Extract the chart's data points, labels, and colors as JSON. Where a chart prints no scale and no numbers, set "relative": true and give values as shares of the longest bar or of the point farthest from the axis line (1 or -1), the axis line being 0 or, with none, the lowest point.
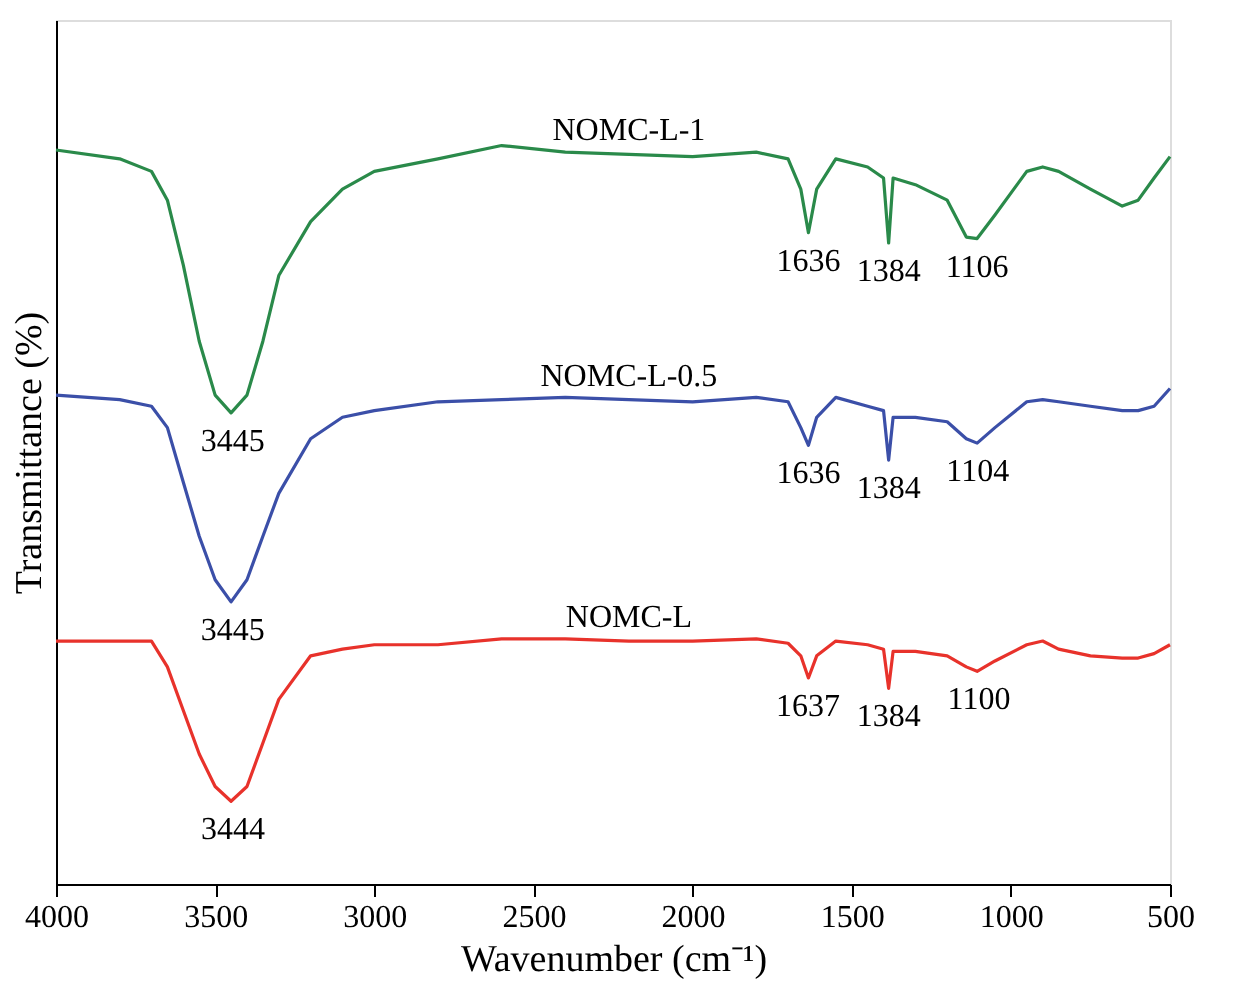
{
  "chart_data": {
    "type": "line",
    "relative": true,
    "xlabel": "Wavenumber (cm⁻¹)",
    "ylabel": "Transmittance (%)",
    "xlim": [
      4000,
      500
    ],
    "xticks": [
      4000,
      3500,
      3000,
      2500,
      2000,
      1500,
      1000,
      500
    ],
    "tick_labels": "x",
    "x": [
      4000,
      3800,
      3700,
      3650,
      3600,
      3550,
      3500,
      3450,
      3400,
      3350,
      3300,
      3200,
      3100,
      3000,
      2800,
      2600,
      2400,
      2200,
      2000,
      1800,
      1700,
      1660,
      1636,
      1610,
      1550,
      1450,
      1400,
      1384,
      1370,
      1300,
      1200,
      1140,
      1106,
      1050,
      950,
      900,
      850,
      750,
      650,
      600,
      550,
      500
    ],
    "series": [
      {
        "name": "NOMC-L-1",
        "color": "#2a8a4a",
        "values": [
          0.994,
          0.982,
          0.965,
          0.926,
          0.838,
          0.735,
          0.662,
          0.638,
          0.662,
          0.735,
          0.824,
          0.897,
          0.941,
          0.965,
          0.982,
          1,
          0.991,
          0.988,
          0.985,
          0.991,
          0.982,
          0.941,
          0.882,
          0.941,
          0.982,
          0.971,
          0.956,
          0.868,
          0.956,
          0.947,
          0.926,
          0.876,
          0.874,
          0.906,
          0.965,
          0.971,
          0.965,
          0.941,
          0.918,
          0.926,
          0.956,
          0.985
        ]
      },
      {
        "name": "NOMC-L-0.5",
        "color": "#3b4fa8",
        "values": [
          0.662,
          0.656,
          0.647,
          0.618,
          0.544,
          0.471,
          0.412,
          0.382,
          0.412,
          0.471,
          0.529,
          0.603,
          0.632,
          0.641,
          0.653,
          0.656,
          0.659,
          0.656,
          0.653,
          0.659,
          0.653,
          0.618,
          0.594,
          0.632,
          0.659,
          0.647,
          0.641,
          0.574,
          0.632,
          0.632,
          0.626,
          0.603,
          0.597,
          0.618,
          0.653,
          0.656,
          0.653,
          0.647,
          0.641,
          0.641,
          0.647,
          0.671
        ]
      },
      {
        "name": "NOMC-L",
        "color": "#e8322b",
        "values": [
          0.329,
          0.329,
          0.329,
          0.294,
          0.235,
          0.176,
          0.132,
          0.112,
          0.132,
          0.191,
          0.25,
          0.309,
          0.318,
          0.324,
          0.324,
          0.332,
          0.332,
          0.329,
          0.329,
          0.332,
          0.326,
          0.309,
          0.279,
          0.309,
          0.329,
          0.324,
          0.318,
          0.265,
          0.315,
          0.315,
          0.309,
          0.294,
          0.288,
          0.302,
          0.324,
          0.329,
          0.318,
          0.309,
          0.306,
          0.306,
          0.312,
          0.324
        ]
      }
    ],
    "annotations": [
      {
        "text": "3445",
        "x": 3445,
        "y": 0.638
      },
      {
        "text": "1636",
        "x": 1636,
        "y": 0.882
      },
      {
        "text": "1384",
        "x": 1384,
        "y": 0.868
      },
      {
        "text": "1106",
        "x": 1106,
        "y": 0.874
      },
      {
        "text": "3445",
        "x": 3445,
        "y": 0.382
      },
      {
        "text": "1636",
        "x": 1636,
        "y": 0.594
      },
      {
        "text": "1384",
        "x": 1384,
        "y": 0.574
      },
      {
        "text": "1104",
        "x": 1104,
        "y": 0.597
      },
      {
        "text": "3444",
        "x": 3444,
        "y": 0.112
      },
      {
        "text": "1637",
        "x": 1637,
        "y": 0.279
      },
      {
        "text": "1384",
        "x": 1384,
        "y": 0.265
      },
      {
        "text": "1100",
        "x": 1100,
        "y": 0.288
      }
    ]
  }
}
